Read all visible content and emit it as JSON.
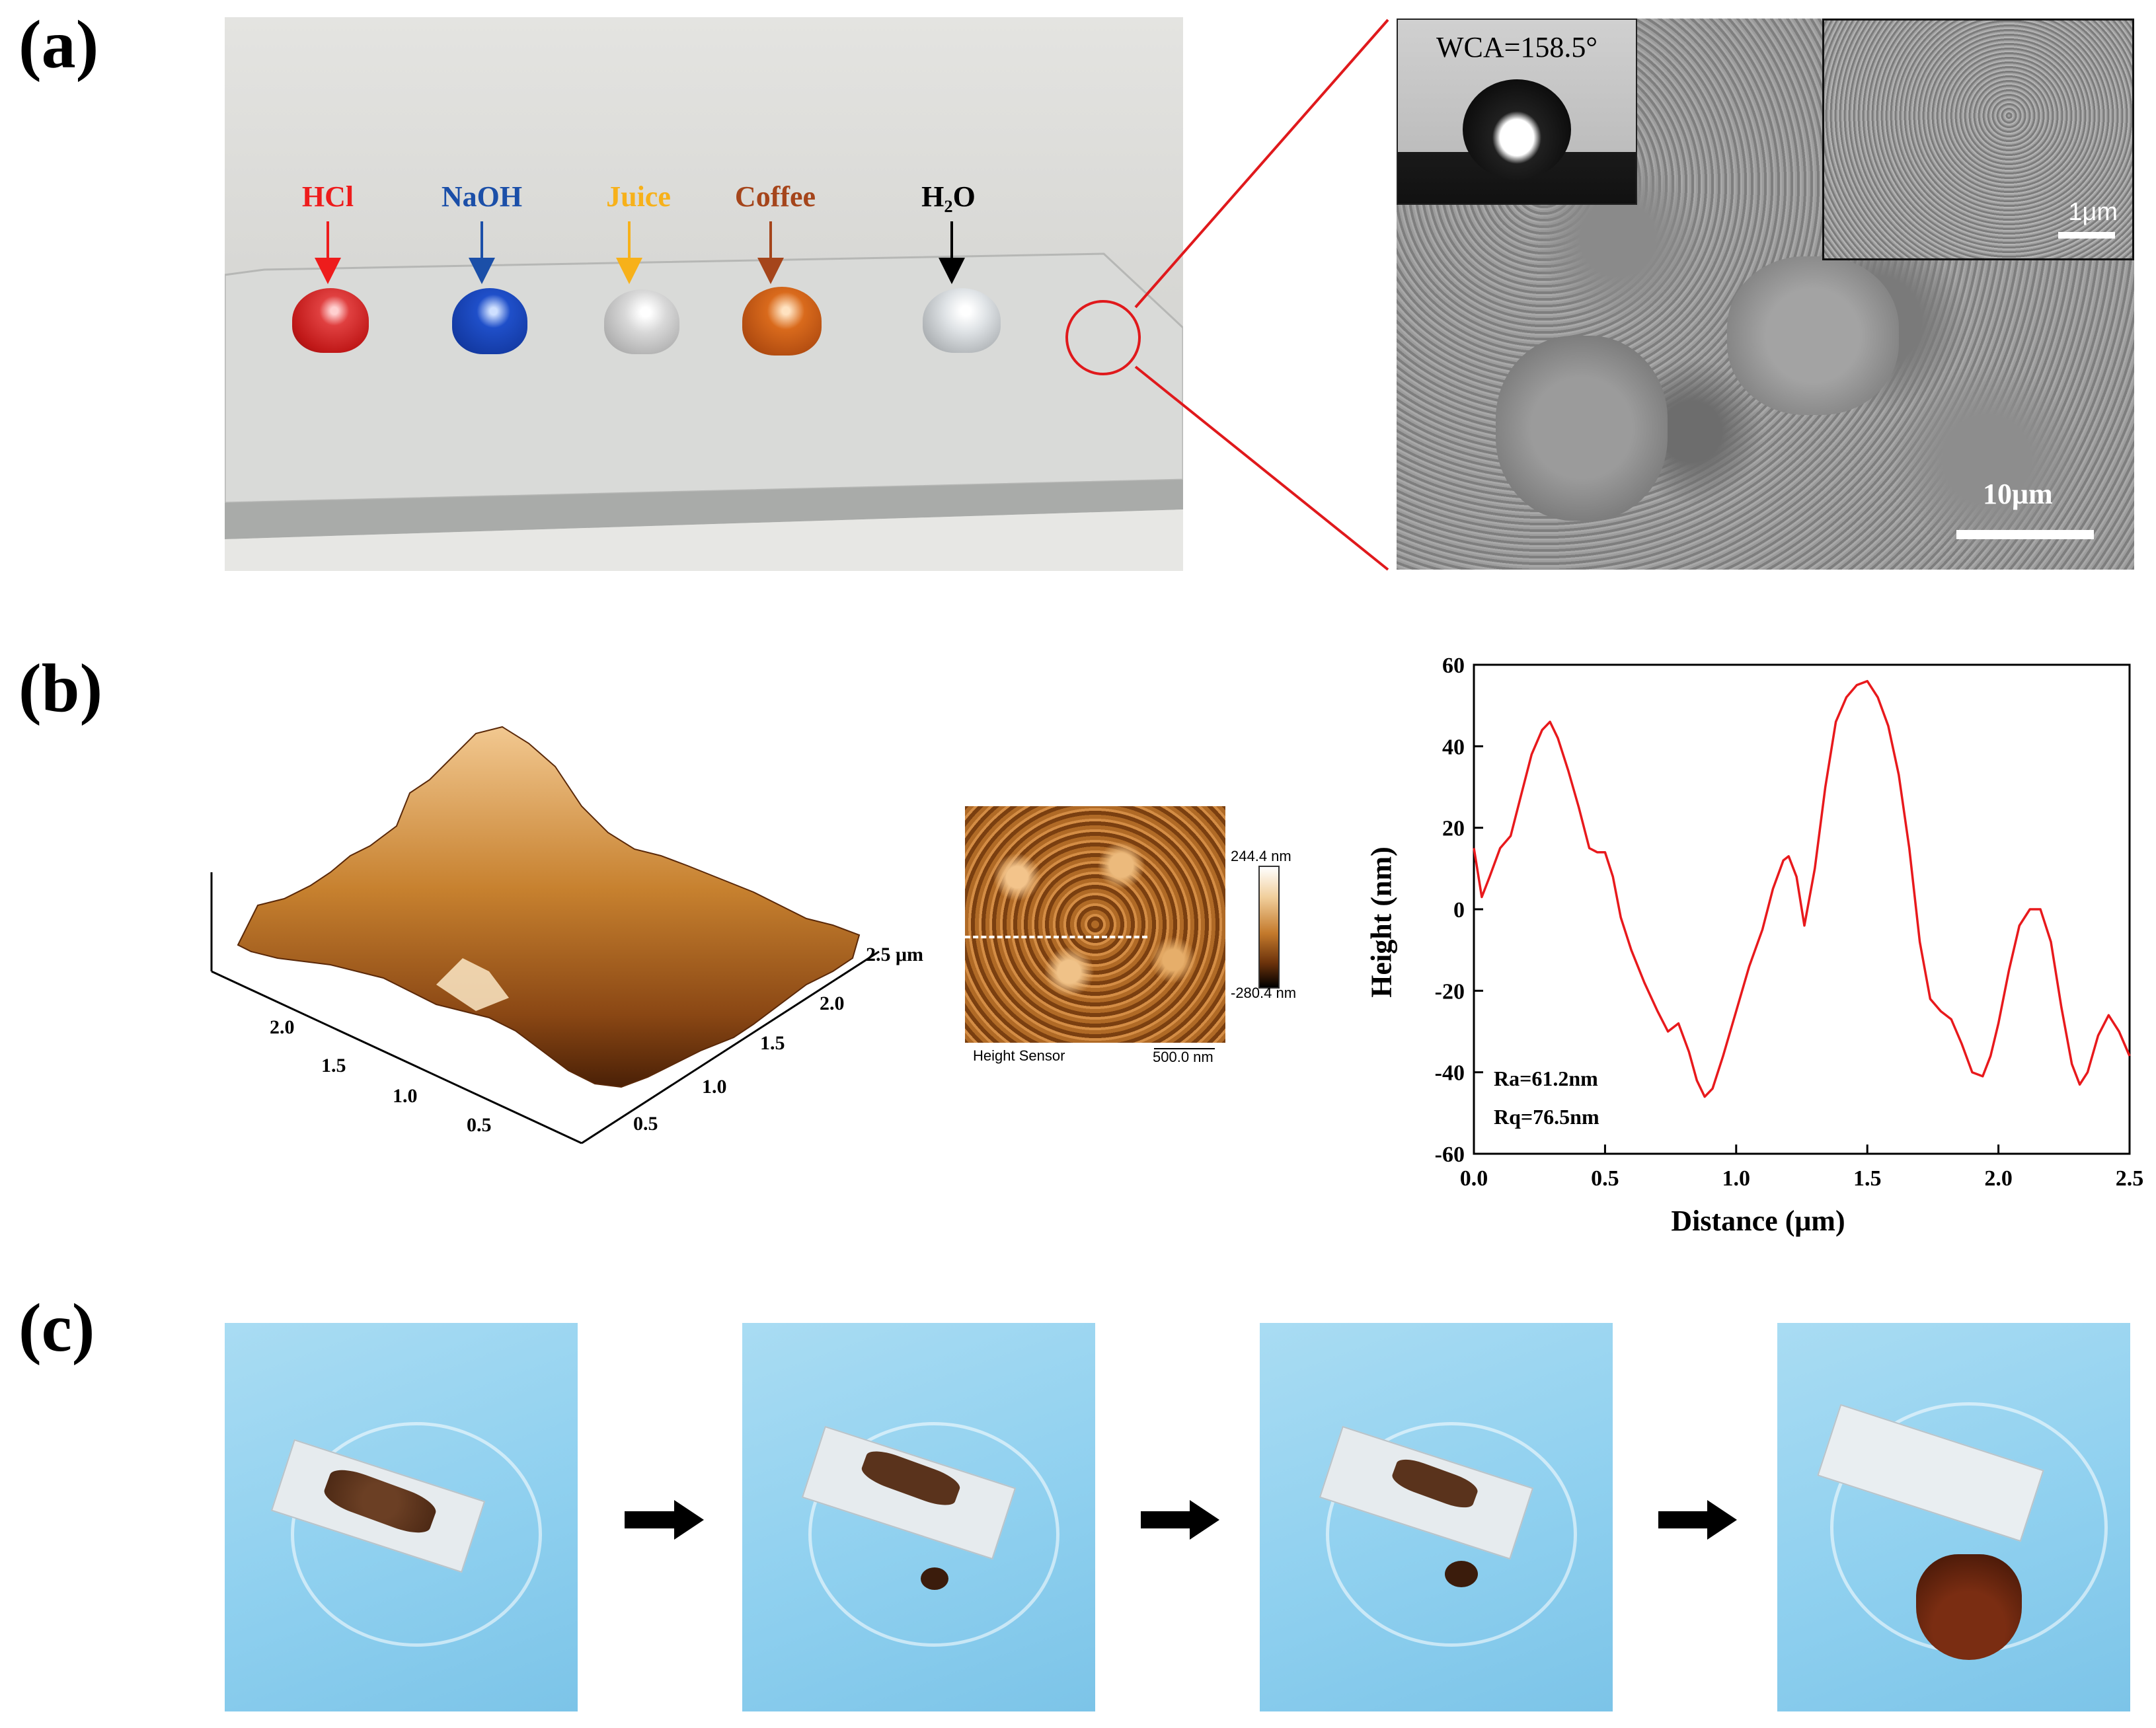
{
  "panels": {
    "a": {
      "label": "(a)",
      "droplets": [
        {
          "name": "HCl",
          "color": "#ee1c1c"
        },
        {
          "name": "NaOH",
          "color": "#1b4fa8"
        },
        {
          "name": "Juice",
          "color": "#f7b11a"
        },
        {
          "name": "Coffee",
          "color": "#a5451b"
        },
        {
          "name": "H₂O",
          "color": "#000000"
        }
      ],
      "wca": "WCA=158.5°",
      "scale_inset": "1μm",
      "scale_main": "10μm"
    },
    "b": {
      "label": "(b)",
      "surface3d": {
        "axis_right_ticks": [
          "2.5 μm",
          "2.0",
          "1.5",
          "1.0",
          "0.5"
        ],
        "axis_left_ticks": [
          "2.0",
          "1.5",
          "1.0",
          "0.5"
        ]
      },
      "map": {
        "colorbar_max": "244.4 nm",
        "colorbar_min": "-280.4 nm",
        "caption": "Height Sensor",
        "scalebar": "500.0 nm"
      },
      "profile": {
        "xlabel": "Distance (μm)",
        "ylabel": "Height (nm)",
        "ra": "Ra=61.2nm",
        "rq": "Rq=76.5nm"
      }
    },
    "c": {
      "label": "(c)"
    }
  },
  "chart_data": {
    "type": "line",
    "xlabel": "Distance (μm)",
    "ylabel": "Height (nm)",
    "xlim": [
      0.0,
      2.5
    ],
    "ylim": [
      -60,
      60
    ],
    "xticks": [
      "0.0",
      "0.5",
      "1.0",
      "1.5",
      "2.0",
      "2.5"
    ],
    "yticks": [
      "-60",
      "-40",
      "-20",
      "0",
      "20",
      "40",
      "60"
    ],
    "color": "#e8191c",
    "series": [
      {
        "x": [
          0.0,
          0.03,
          0.06,
          0.1,
          0.14,
          0.18,
          0.22,
          0.26,
          0.29,
          0.32,
          0.36,
          0.4,
          0.44,
          0.47,
          0.5,
          0.53,
          0.56,
          0.6,
          0.65,
          0.7,
          0.74,
          0.78,
          0.82,
          0.85,
          0.88,
          0.91,
          0.95,
          1.0,
          1.05,
          1.1,
          1.14,
          1.18,
          1.2,
          1.23,
          1.26,
          1.3,
          1.34,
          1.38,
          1.42,
          1.46,
          1.5,
          1.54,
          1.58,
          1.62,
          1.66,
          1.7,
          1.74,
          1.78,
          1.82,
          1.86,
          1.9,
          1.94,
          1.97,
          2.0,
          2.04,
          2.08,
          2.12,
          2.16,
          2.2,
          2.24,
          2.28,
          2.31,
          2.34,
          2.38,
          2.42,
          2.46,
          2.5
        ],
        "y": [
          15,
          3,
          8,
          15,
          18,
          28,
          38,
          44,
          46,
          42,
          34,
          25,
          15,
          14,
          14,
          8,
          -2,
          -10,
          -18,
          -25,
          -30,
          -28,
          -35,
          -42,
          -46,
          -44,
          -36,
          -25,
          -14,
          -5,
          5,
          12,
          13,
          8,
          -4,
          10,
          30,
          46,
          52,
          55,
          56,
          52,
          45,
          33,
          15,
          -8,
          -22,
          -25,
          -27,
          -33,
          -40,
          -41,
          -36,
          -28,
          -15,
          -4,
          0,
          0,
          -8,
          -24,
          -38,
          -43,
          -40,
          -31,
          -26,
          -30,
          -36
        ]
      }
    ]
  }
}
